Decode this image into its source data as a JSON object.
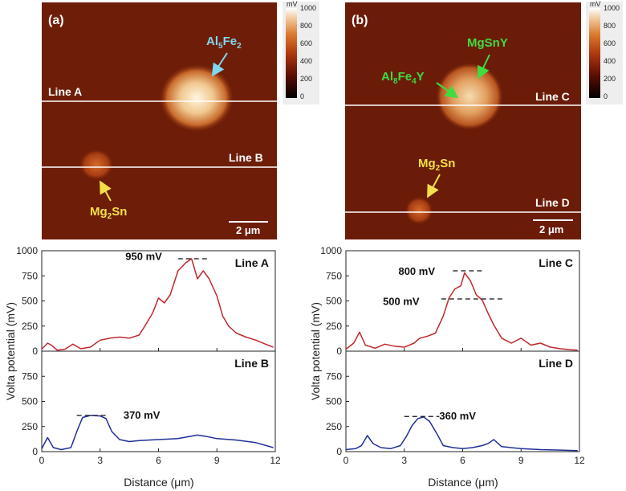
{
  "panels": [
    {
      "id": "a",
      "label": "(a)",
      "scale_bar": "2 μm",
      "line_labels": [
        "Line A",
        "Line B"
      ],
      "phases": [
        {
          "text": "Al5Fe2",
          "base": "Al",
          "sub1": "5",
          "mid": "Fe",
          "sub2": "2",
          "color": "#7fd8f0"
        },
        {
          "text": "Mg2Sn",
          "base": "Mg",
          "sub1": "2",
          "mid": "Sn",
          "sub2": "",
          "color": "#f2e04a"
        }
      ]
    },
    {
      "id": "b",
      "label": "(b)",
      "scale_bar": "2 μm",
      "line_labels": [
        "Line C",
        "Line D"
      ],
      "phases": [
        {
          "text": "MgSnY",
          "base": "MgSnY",
          "sub1": "",
          "mid": "",
          "sub2": "",
          "color": "#3fdc3f"
        },
        {
          "text": "Al8Fe4Y",
          "base": "Al",
          "sub1": "8",
          "mid": "Fe",
          "sub2": "4",
          "tail": "Y",
          "color": "#3fdc3f"
        },
        {
          "text": "Mg2Sn",
          "base": "Mg",
          "sub1": "2",
          "mid": "Sn",
          "sub2": "",
          "color": "#f2e04a"
        }
      ]
    }
  ],
  "colorbar": {
    "unit": "mV",
    "ticks": [
      "1000",
      "800",
      "600",
      "400",
      "200",
      "0"
    ]
  },
  "axes": {
    "xlabel": "Distance (μm)",
    "ylabel": "Volta potential (mV)",
    "x_ticks": [
      "0",
      "3",
      "6",
      "9",
      "12"
    ],
    "y_ticks_top": [
      "0",
      "250",
      "500",
      "750",
      "1000"
    ],
    "y_ticks_bottom": [
      "0",
      "250",
      "500",
      "750"
    ]
  },
  "chart_data": [
    {
      "type": "line",
      "label": "Line A",
      "xlim": [
        0,
        12
      ],
      "ylim": [
        0,
        1000
      ],
      "color": "#c0282d",
      "annotations": [
        "950 mV"
      ],
      "x": [
        0,
        0.3,
        0.5,
        0.8,
        1.2,
        1.6,
        2.0,
        2.5,
        3.0,
        3.5,
        4.0,
        4.5,
        5.0,
        5.3,
        5.7,
        6.0,
        6.3,
        6.6,
        7.0,
        7.4,
        7.7,
        8.0,
        8.3,
        8.6,
        9.0,
        9.3,
        9.6,
        10.0,
        10.5,
        11.0,
        11.5,
        11.9
      ],
      "y": [
        20,
        80,
        60,
        10,
        20,
        70,
        25,
        40,
        110,
        130,
        140,
        130,
        160,
        250,
        380,
        530,
        480,
        560,
        800,
        880,
        920,
        720,
        800,
        720,
        550,
        350,
        250,
        180,
        140,
        110,
        70,
        40
      ]
    },
    {
      "type": "line",
      "label": "Line B",
      "xlim": [
        0,
        12
      ],
      "ylim": [
        0,
        1000
      ],
      "color": "#1f2f98",
      "annotations": [
        "370 mV"
      ],
      "x": [
        0,
        0.3,
        0.6,
        1.0,
        1.5,
        1.8,
        2.1,
        2.5,
        3.0,
        3.3,
        3.6,
        4.0,
        4.5,
        5.0,
        6.0,
        7.0,
        8.0,
        8.5,
        9.0,
        10.0,
        11.0,
        11.9
      ],
      "y": [
        30,
        140,
        40,
        20,
        40,
        200,
        340,
        360,
        355,
        330,
        200,
        120,
        100,
        110,
        120,
        130,
        165,
        150,
        130,
        115,
        90,
        40
      ]
    },
    {
      "type": "line",
      "label": "Line C",
      "xlim": [
        0,
        12
      ],
      "ylim": [
        0,
        1000
      ],
      "color": "#c0282d",
      "annotations": [
        "800 mV",
        "500 mV"
      ],
      "x": [
        0,
        0.4,
        0.7,
        1.0,
        1.5,
        2.0,
        2.5,
        3.0,
        3.5,
        3.8,
        4.2,
        4.6,
        5.0,
        5.3,
        5.6,
        5.9,
        6.1,
        6.4,
        6.7,
        7.0,
        7.3,
        7.6,
        8.0,
        8.5,
        9.0,
        9.5,
        10.0,
        10.5,
        11.0,
        11.5,
        11.9
      ],
      "y": [
        20,
        80,
        190,
        60,
        30,
        70,
        50,
        40,
        80,
        130,
        150,
        180,
        350,
        530,
        620,
        650,
        780,
        700,
        560,
        510,
        380,
        260,
        130,
        80,
        130,
        60,
        80,
        40,
        25,
        15,
        10
      ]
    },
    {
      "type": "line",
      "label": "Line D",
      "xlim": [
        0,
        12
      ],
      "ylim": [
        0,
        1000
      ],
      "color": "#1f2f98",
      "annotations": [
        "360 mV"
      ],
      "x": [
        0,
        0.5,
        0.8,
        1.1,
        1.4,
        1.8,
        2.3,
        2.8,
        3.1,
        3.4,
        3.7,
        4.0,
        4.3,
        4.7,
        5.0,
        5.5,
        6.0,
        6.5,
        7.0,
        7.3,
        7.6,
        8.0,
        9.0,
        10.0,
        11.0,
        11.9
      ],
      "y": [
        20,
        30,
        60,
        160,
        80,
        40,
        30,
        60,
        150,
        260,
        330,
        345,
        300,
        170,
        60,
        40,
        30,
        40,
        60,
        80,
        120,
        50,
        30,
        20,
        15,
        10
      ]
    }
  ]
}
